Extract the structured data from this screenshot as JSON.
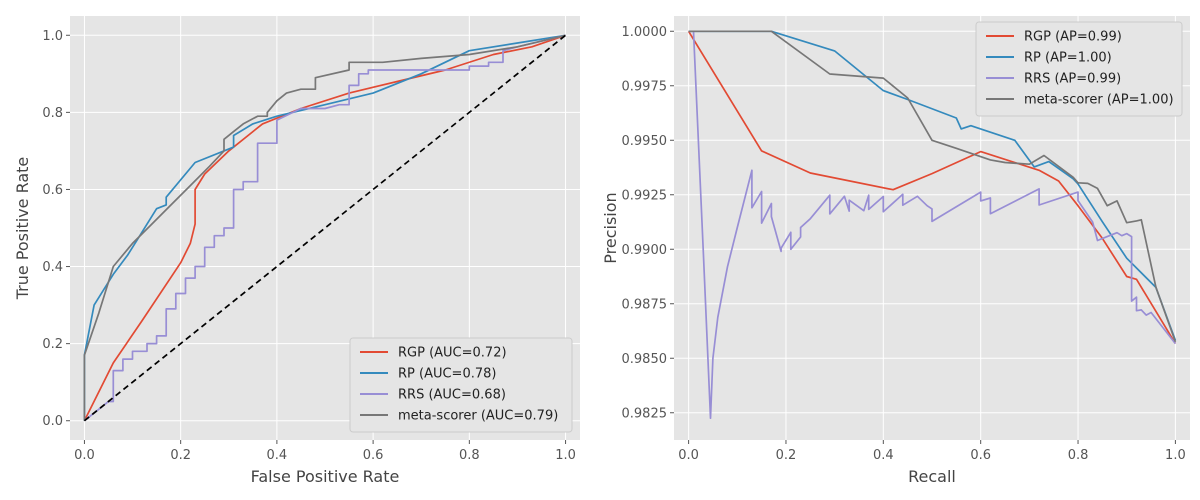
{
  "chart_data": [
    {
      "type": "line",
      "xlabel": "False Positive Rate",
      "ylabel": "True Positive Rate",
      "xlim": [
        -0.03,
        1.03
      ],
      "ylim": [
        -0.05,
        1.05
      ],
      "xticks": [
        0.0,
        0.2,
        0.4,
        0.6,
        0.8,
        1.0
      ],
      "yticks": [
        0.0,
        0.2,
        0.4,
        0.6,
        0.8,
        1.0
      ],
      "xtick_labels": [
        "0.0",
        "0.2",
        "0.4",
        "0.6",
        "0.8",
        "1.0"
      ],
      "ytick_labels": [
        "0.0",
        "0.2",
        "0.4",
        "0.6",
        "0.8",
        "1.0"
      ],
      "legend_position": "lower-right",
      "reference_line": {
        "x": [
          0,
          1
        ],
        "y": [
          0,
          1
        ],
        "style": "dashed",
        "color": "#000000"
      },
      "series": [
        {
          "name": "RGP (AUC=0.72)",
          "color": "#E24A33",
          "x": [
            0,
            0.06,
            0.12,
            0.2,
            0.22,
            0.23,
            0.23,
            0.25,
            0.3,
            0.37,
            0.45,
            0.55,
            0.65,
            0.75,
            0.85,
            0.93,
            1.0
          ],
          "y": [
            0,
            0.15,
            0.26,
            0.41,
            0.46,
            0.51,
            0.6,
            0.64,
            0.7,
            0.77,
            0.81,
            0.85,
            0.88,
            0.91,
            0.95,
            0.97,
            1.0
          ]
        },
        {
          "name": "RP (AUC=0.78)",
          "color": "#348ABD",
          "x": [
            0,
            0.02,
            0.06,
            0.09,
            0.11,
            0.15,
            0.17,
            0.17,
            0.23,
            0.31,
            0.31,
            0.35,
            0.4,
            0.5,
            0.6,
            0.7,
            0.8,
            0.9,
            1.0
          ],
          "y": [
            0.17,
            0.3,
            0.38,
            0.43,
            0.47,
            0.55,
            0.56,
            0.58,
            0.67,
            0.71,
            0.74,
            0.77,
            0.79,
            0.82,
            0.85,
            0.9,
            0.96,
            0.98,
            1.0
          ],
          "xmin_start": 0
        },
        {
          "name": "RRS (AUC=0.68)",
          "color": "#988ED5",
          "x": [
            0,
            0.03,
            0.05,
            0.06,
            0.06,
            0.08,
            0.08,
            0.1,
            0.1,
            0.13,
            0.13,
            0.15,
            0.15,
            0.17,
            0.17,
            0.19,
            0.19,
            0.21,
            0.21,
            0.23,
            0.23,
            0.25,
            0.25,
            0.27,
            0.27,
            0.29,
            0.29,
            0.31,
            0.31,
            0.33,
            0.33,
            0.36,
            0.36,
            0.4,
            0.4,
            0.45,
            0.5,
            0.53,
            0.55,
            0.55,
            0.57,
            0.57,
            0.59,
            0.59,
            0.7,
            0.7,
            0.8,
            0.8,
            0.84,
            0.84,
            0.87,
            0.87,
            0.9,
            1.0
          ],
          "y": [
            0,
            0.03,
            0.05,
            0.05,
            0.13,
            0.13,
            0.16,
            0.16,
            0.18,
            0.18,
            0.2,
            0.2,
            0.22,
            0.22,
            0.29,
            0.29,
            0.33,
            0.33,
            0.37,
            0.37,
            0.4,
            0.4,
            0.45,
            0.45,
            0.48,
            0.48,
            0.5,
            0.5,
            0.6,
            0.6,
            0.62,
            0.62,
            0.72,
            0.72,
            0.78,
            0.81,
            0.81,
            0.82,
            0.82,
            0.87,
            0.87,
            0.9,
            0.9,
            0.91,
            0.91,
            0.91,
            0.91,
            0.92,
            0.92,
            0.93,
            0.93,
            0.96,
            0.97,
            1.0
          ]
        },
        {
          "name": "meta-scorer (AUC=0.79)",
          "color": "#777777",
          "x": [
            0,
            0.0,
            0.03,
            0.06,
            0.1,
            0.14,
            0.18,
            0.22,
            0.26,
            0.29,
            0.29,
            0.31,
            0.33,
            0.36,
            0.38,
            0.38,
            0.4,
            0.42,
            0.45,
            0.48,
            0.48,
            0.55,
            0.55,
            0.62,
            0.7,
            0.8,
            0.9,
            1.0
          ],
          "y": [
            0,
            0.17,
            0.28,
            0.4,
            0.46,
            0.51,
            0.56,
            0.61,
            0.66,
            0.7,
            0.73,
            0.75,
            0.77,
            0.79,
            0.79,
            0.8,
            0.83,
            0.85,
            0.86,
            0.86,
            0.89,
            0.91,
            0.93,
            0.93,
            0.94,
            0.95,
            0.97,
            1.0
          ]
        }
      ]
    },
    {
      "type": "line",
      "xlabel": "Recall",
      "ylabel": "Precision",
      "xlim": [
        -0.03,
        1.03
      ],
      "ylim": [
        0.98125,
        1.0007
      ],
      "xticks": [
        0.0,
        0.2,
        0.4,
        0.6,
        0.8,
        1.0
      ],
      "yticks": [
        0.9825,
        0.985,
        0.9875,
        0.99,
        0.9925,
        0.995,
        0.9975,
        1.0
      ],
      "xtick_labels": [
        "0.0",
        "0.2",
        "0.4",
        "0.6",
        "0.8",
        "1.0"
      ],
      "ytick_labels": [
        "0.9825",
        "0.9850",
        "0.9875",
        "0.9900",
        "0.9925",
        "0.9950",
        "0.9975",
        "1.0000"
      ],
      "legend_position": "upper-right",
      "series": [
        {
          "name": "RGP (AP=0.99)",
          "color": "#E24A33",
          "x": [
            0,
            0.15,
            0.25,
            0.42,
            0.5,
            0.6,
            0.72,
            0.76,
            0.8,
            0.85,
            0.9,
            0.92,
            1.0
          ],
          "y": [
            1.0,
            0.99451,
            0.9935,
            0.99273,
            0.99347,
            0.99448,
            0.99362,
            0.99313,
            0.992,
            0.9905,
            0.98875,
            0.98862,
            0.98567
          ]
        },
        {
          "name": "RP (AP=1.00)",
          "color": "#348ABD",
          "x": [
            0,
            0.17,
            0.3,
            0.4,
            0.45,
            0.55,
            0.56,
            0.58,
            0.67,
            0.71,
            0.74,
            0.79,
            0.8,
            0.85,
            0.9,
            0.96,
            1.0
          ],
          "y": [
            1.0,
            1.0,
            0.9991,
            0.99728,
            0.99687,
            0.99602,
            0.99552,
            0.99567,
            0.995,
            0.99378,
            0.99402,
            0.99323,
            0.993,
            0.99126,
            0.98959,
            0.98825,
            0.98582
          ]
        },
        {
          "name": "RRS (AP=0.99)",
          "color": "#988ED5",
          "x": [
            0,
            0.01,
            0.03,
            0.045,
            0.05,
            0.06,
            0.08,
            0.1,
            0.13,
            0.13,
            0.15,
            0.15,
            0.17,
            0.17,
            0.19,
            0.19,
            0.21,
            0.21,
            0.23,
            0.23,
            0.25,
            0.29,
            0.29,
            0.32,
            0.33,
            0.33,
            0.36,
            0.37,
            0.37,
            0.4,
            0.4,
            0.44,
            0.44,
            0.47,
            0.49,
            0.5,
            0.5,
            0.6,
            0.6,
            0.62,
            0.62,
            0.72,
            0.72,
            0.8,
            0.8,
            0.83,
            0.84,
            0.86,
            0.88,
            0.89,
            0.9,
            0.91,
            0.91,
            0.92,
            0.92,
            0.93,
            0.94,
            0.95,
            1.0
          ],
          "y": [
            1.0,
            1.0,
            0.99,
            0.98225,
            0.985,
            0.98688,
            0.9892,
            0.991,
            0.99362,
            0.9919,
            0.99265,
            0.9912,
            0.9921,
            0.9915,
            0.9899,
            0.99005,
            0.99078,
            0.99,
            0.99056,
            0.991,
            0.9914,
            0.99248,
            0.99162,
            0.99243,
            0.99175,
            0.99225,
            0.99177,
            0.99248,
            0.99183,
            0.99242,
            0.99172,
            0.99252,
            0.99202,
            0.99243,
            0.992,
            0.99185,
            0.99128,
            0.99262,
            0.99222,
            0.99235,
            0.99163,
            0.99277,
            0.99203,
            0.99262,
            0.99223,
            0.99125,
            0.9904,
            0.99058,
            0.99076,
            0.99062,
            0.99072,
            0.99058,
            0.98762,
            0.9878,
            0.98718,
            0.98722,
            0.98698,
            0.9871,
            0.98567
          ]
        },
        {
          "name": "meta-scorer (AP=1.00)",
          "color": "#777777",
          "x": [
            0,
            0.17,
            0.29,
            0.4,
            0.45,
            0.5,
            0.55,
            0.62,
            0.65,
            0.7,
            0.73,
            0.79,
            0.8,
            0.82,
            0.84,
            0.86,
            0.88,
            0.9,
            0.9,
            0.92,
            0.93,
            0.96,
            1.0
          ],
          "y": [
            1.0,
            1.0,
            0.99804,
            0.99785,
            0.99694,
            0.995,
            0.99463,
            0.9941,
            0.99398,
            0.9939,
            0.9943,
            0.9933,
            0.99305,
            0.99302,
            0.99279,
            0.992,
            0.99222,
            0.99122,
            0.99122,
            0.9913,
            0.99135,
            0.98826,
            0.98575
          ]
        }
      ]
    }
  ]
}
